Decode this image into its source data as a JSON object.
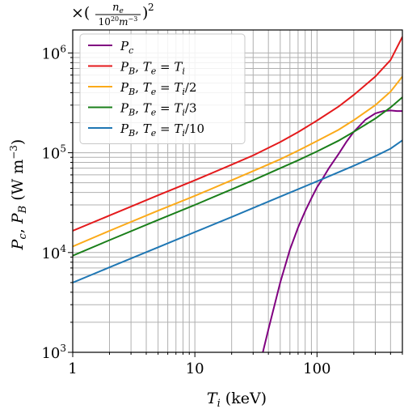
{
  "chart_data": {
    "type": "line",
    "xscale": "log",
    "yscale": "log",
    "xlim": [
      1,
      500
    ],
    "ylim": [
      1000,
      1700000
    ],
    "grid": true,
    "legend_position": "top-left",
    "xlabel_var": "T",
    "xlabel_sub": "i",
    "xlabel_unit": " (keV)",
    "ylabel_text": "P_c, P_B (W m^-3)",
    "header_annotation": "×(n_e / 10^20 m^-3)^2",
    "x_ticks": [
      {
        "value": 1,
        "label": "1"
      },
      {
        "value": 10,
        "label": "10"
      },
      {
        "value": 100,
        "label": "100"
      }
    ],
    "y_ticks": [
      {
        "value": 1000,
        "base": "10",
        "exp": "3"
      },
      {
        "value": 10000,
        "base": "10",
        "exp": "4"
      },
      {
        "value": 100000,
        "base": "10",
        "exp": "5"
      },
      {
        "value": 1000000,
        "base": "10",
        "exp": "6"
      }
    ],
    "series": [
      {
        "name": "P_c",
        "label": "Pc",
        "color": "#800080",
        "x": [
          36,
          40,
          45,
          50,
          60,
          70,
          80,
          90,
          100,
          110,
          125,
          150,
          175,
          200,
          250,
          300,
          350,
          400,
          450,
          500
        ],
        "y": [
          1000,
          1700,
          3000,
          5000,
          10700,
          17800,
          26000,
          35000,
          45000,
          54000,
          70000,
          97000,
          130000,
          162000,
          215000,
          248000,
          262000,
          265000,
          262000,
          262000
        ]
      },
      {
        "name": "P_B, T_e = T_i",
        "label": "PB, Te = Ti",
        "color": "#e41a1c",
        "x": [
          1,
          2,
          5,
          10,
          20,
          30,
          50,
          70,
          100,
          150,
          200,
          300,
          400,
          500
        ],
        "y": [
          16500,
          23500,
          37500,
          53000,
          76000,
          94000,
          128000,
          161000,
          210000,
          290000,
          380000,
          580000,
          850000,
          1450000
        ]
      },
      {
        "name": "P_B, T_e = T_i/2",
        "label": "PB, Te = Ti/2",
        "color": "#fbaa19",
        "x": [
          1,
          2,
          5,
          10,
          20,
          30,
          50,
          70,
          100,
          150,
          200,
          300,
          400,
          500
        ],
        "y": [
          11500,
          16500,
          26300,
          37000,
          53000,
          65500,
          86000,
          105000,
          131000,
          170000,
          212000,
          300000,
          410000,
          580000
        ]
      },
      {
        "name": "P_B, T_e = T_i/3",
        "label": "PB, Te = Ti/3",
        "color": "#1a7f1a",
        "x": [
          1,
          2,
          5,
          10,
          20,
          30,
          50,
          70,
          100,
          150,
          200,
          300,
          400,
          500
        ],
        "y": [
          9300,
          13300,
          21200,
          30000,
          43000,
          53000,
          70000,
          84000,
          103000,
          132000,
          162000,
          220000,
          285000,
          360000
        ]
      },
      {
        "name": "P_B, T_e = T_i/10",
        "label": "PB, Te = Ti/10",
        "color": "#1f77b4",
        "x": [
          1,
          2,
          5,
          10,
          20,
          50,
          100,
          200,
          300,
          400,
          500
        ],
        "y": [
          5000,
          7100,
          11300,
          16000,
          22700,
          36300,
          51700,
          74000,
          92500,
          110000,
          133000
        ]
      }
    ]
  }
}
